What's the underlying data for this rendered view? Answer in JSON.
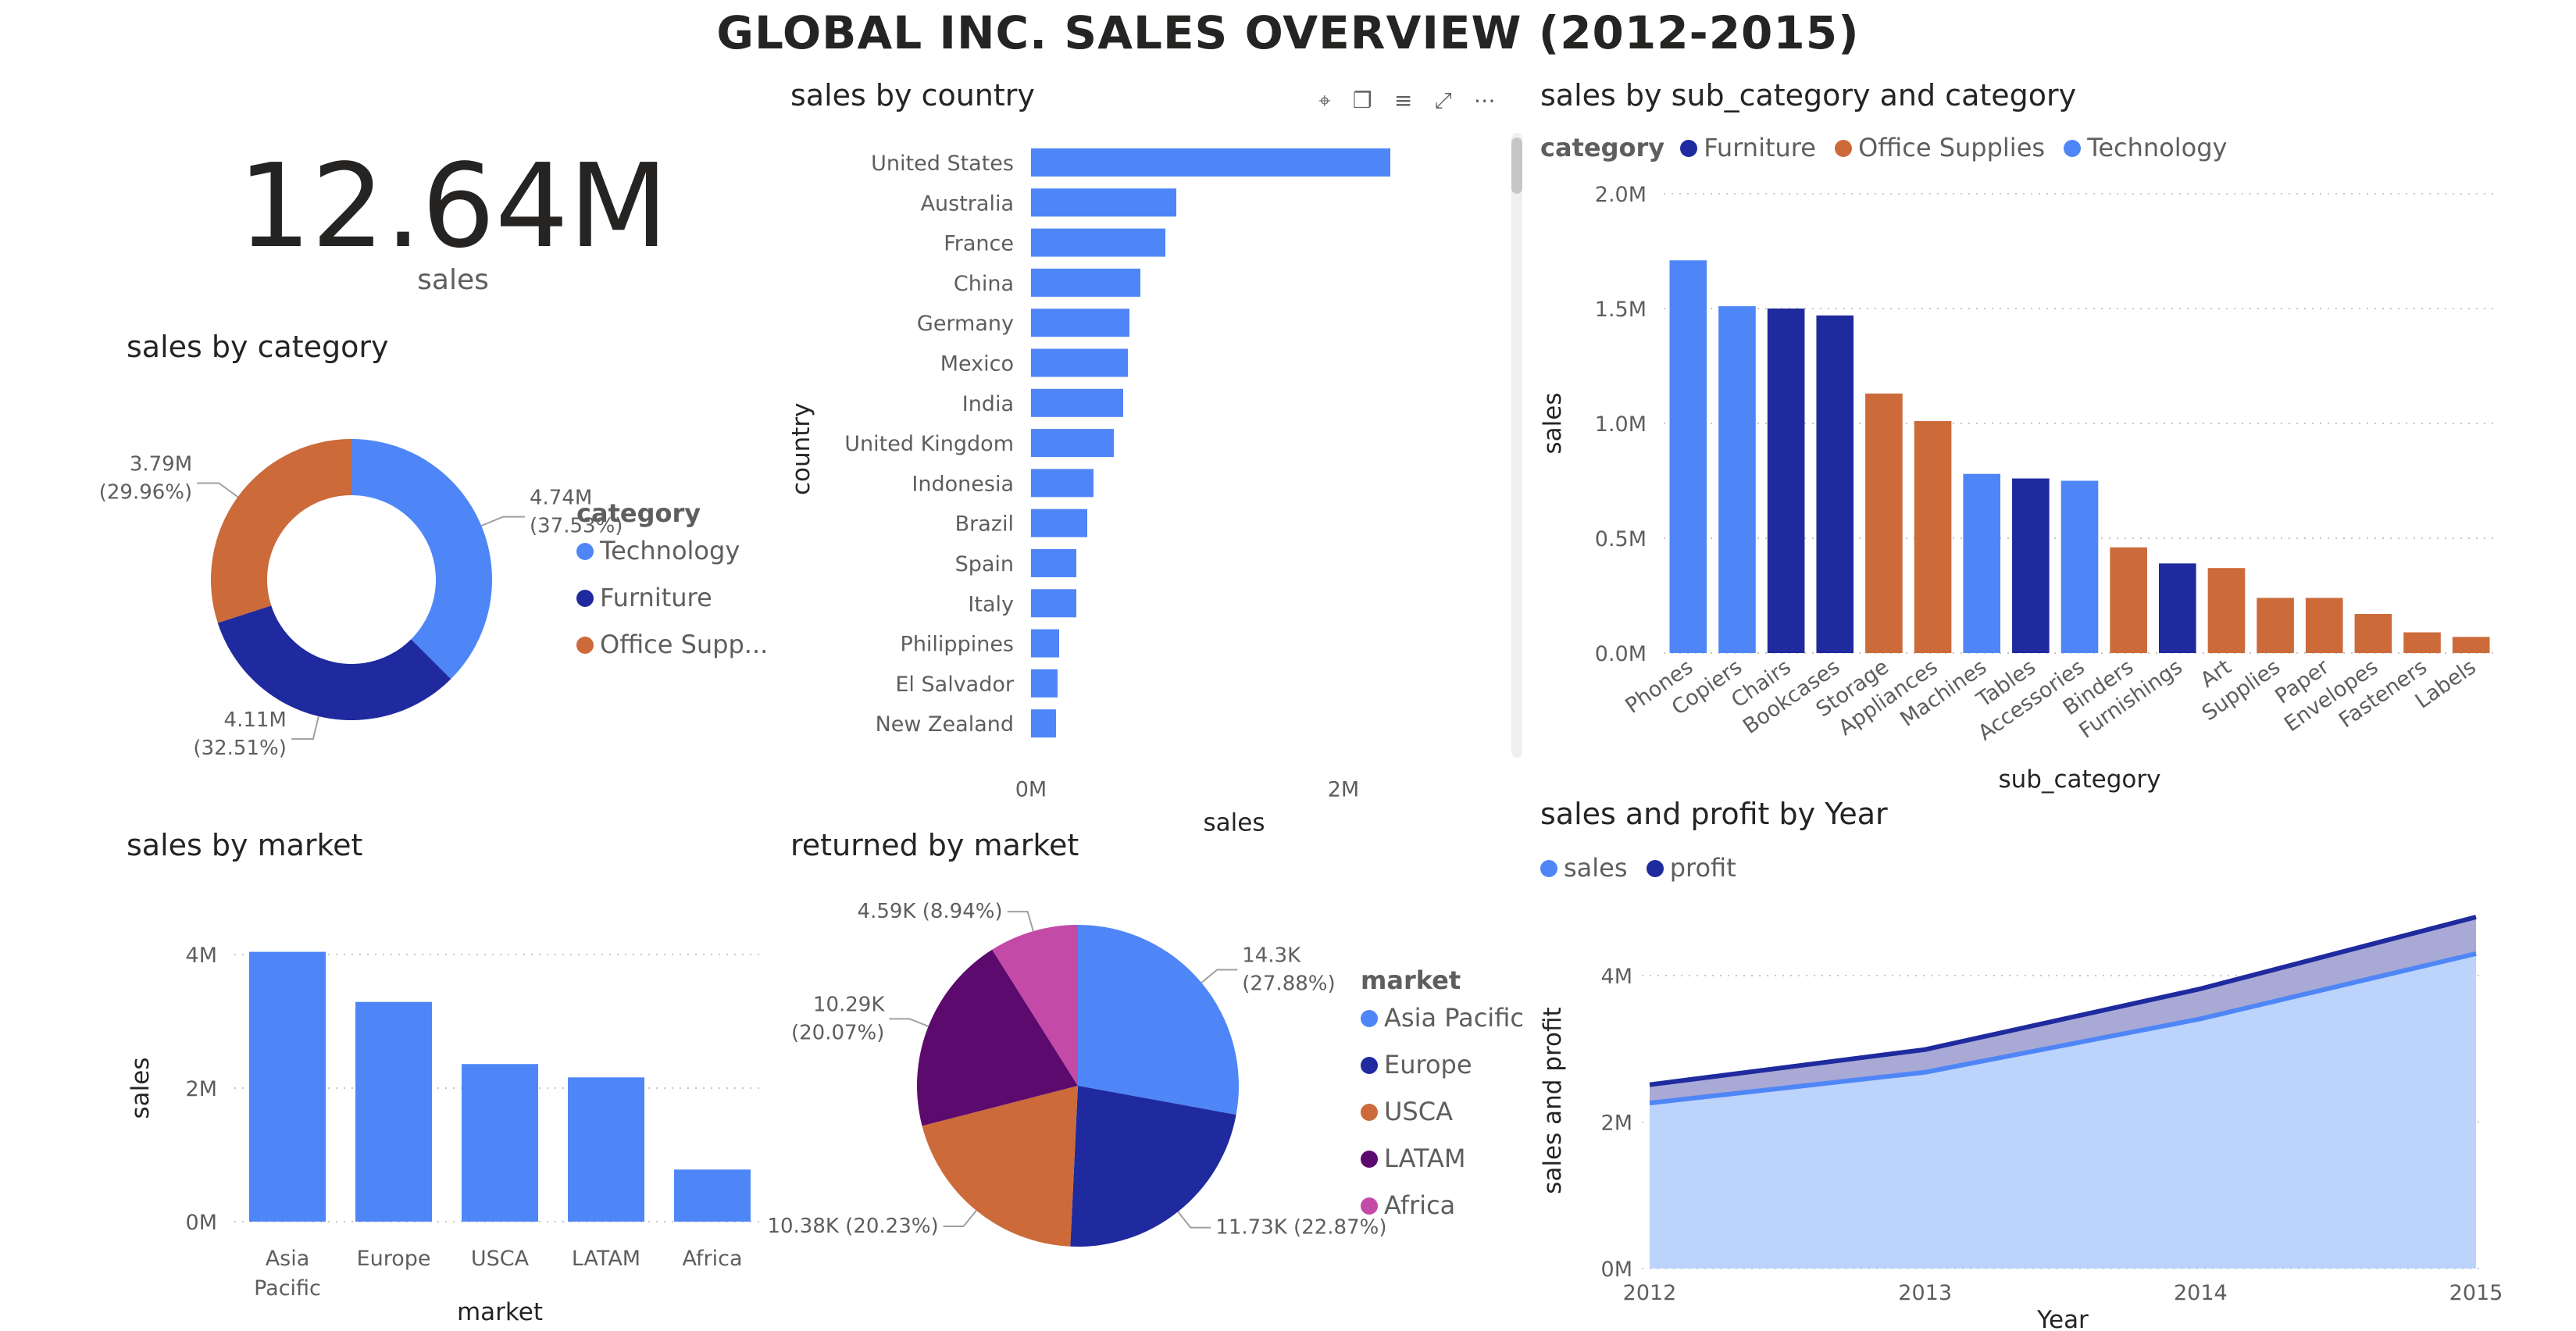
{
  "title": "GLOBAL INC. SALES OVERVIEW (2012-2015)",
  "kpi": {
    "value": "12.64M",
    "label": "sales"
  },
  "colors": {
    "technology": "#4f86f7",
    "furniture": "#1f2a9e",
    "office": "#cc6a3a",
    "latam": "#5c0a6e",
    "africa": "#c44aa8",
    "sales_area": "#bcd3fb",
    "profit_area": "#a9a9d6",
    "grid": "#c8c6c4"
  },
  "toolbar_icons": [
    "pin-icon",
    "copy-icon",
    "filter-icon",
    "focus-mode-icon",
    "more-options-icon"
  ],
  "category_donut": {
    "title": "sales by category",
    "legend_title": "category",
    "legend": [
      "Technology",
      "Furniture",
      "Office Supp..."
    ],
    "chart_data": {
      "type": "pie",
      "labels": [
        "Technology",
        "Furniture",
        "Office Supplies"
      ],
      "values": [
        4.74,
        4.11,
        3.79
      ],
      "percents": [
        37.53,
        32.51,
        29.96
      ],
      "data_labels": [
        [
          "4.74M",
          "(37.53%)"
        ],
        [
          "4.11M",
          "(32.51%)"
        ],
        [
          "3.79M",
          "(29.96%)"
        ]
      ],
      "colors": [
        "#4f86f7",
        "#1f2a9e",
        "#cc6a3a"
      ]
    }
  },
  "country_chart": {
    "title": "sales by country",
    "chart_data": {
      "type": "bar",
      "orientation": "horizontal",
      "categories": [
        "United States",
        "Australia",
        "France",
        "China",
        "Germany",
        "Mexico",
        "India",
        "United Kingdom",
        "Indonesia",
        "Brazil",
        "Spain",
        "Italy",
        "Philippines",
        "El Salvador",
        "New Zealand"
      ],
      "values": [
        2.3,
        0.93,
        0.86,
        0.7,
        0.63,
        0.62,
        0.59,
        0.53,
        0.4,
        0.36,
        0.29,
        0.29,
        0.18,
        0.17,
        0.16
      ],
      "xlabel": "sales",
      "ylabel": "country",
      "xticks": [
        "0M",
        "2M"
      ],
      "xlim": [
        0,
        2.6
      ],
      "unit": "M",
      "color": "#4f86f7"
    }
  },
  "subcat_chart": {
    "title": "sales by sub_category and category",
    "legend_title": "category",
    "legend": [
      "Furniture",
      "Office Supplies",
      "Technology"
    ],
    "chart_data": {
      "type": "bar",
      "categories": [
        "Phones",
        "Copiers",
        "Chairs",
        "Bookcases",
        "Storage",
        "Appliances",
        "Machines",
        "Tables",
        "Accessories",
        "Binders",
        "Furnishings",
        "Art",
        "Supplies",
        "Paper",
        "Envelopes",
        "Fasteners",
        "Labels"
      ],
      "values": [
        1.71,
        1.51,
        1.5,
        1.47,
        1.13,
        1.01,
        0.78,
        0.76,
        0.75,
        0.46,
        0.39,
        0.37,
        0.24,
        0.24,
        0.17,
        0.09,
        0.07
      ],
      "category_of": [
        "Technology",
        "Technology",
        "Furniture",
        "Furniture",
        "Office Supplies",
        "Office Supplies",
        "Technology",
        "Furniture",
        "Technology",
        "Office Supplies",
        "Furniture",
        "Office Supplies",
        "Office Supplies",
        "Office Supplies",
        "Office Supplies",
        "Office Supplies",
        "Office Supplies"
      ],
      "xlabel": "sub_category",
      "ylabel": "sales",
      "yticks": [
        "0.0M",
        "0.5M",
        "1.0M",
        "1.5M",
        "2.0M"
      ],
      "ylim": [
        0,
        2.0
      ],
      "grid": true
    }
  },
  "market_chart": {
    "title": "sales by market",
    "chart_data": {
      "type": "bar",
      "categories": [
        [
          "Asia",
          "Pacific"
        ],
        [
          "Europe"
        ],
        [
          "USCA"
        ],
        [
          "LATAM"
        ],
        [
          "Africa"
        ]
      ],
      "values": [
        4.04,
        3.29,
        2.36,
        2.16,
        0.78
      ],
      "xlabel": "market",
      "ylabel": "sales",
      "yticks": [
        "0M",
        "2M",
        "4M"
      ],
      "ylim": [
        0,
        4.0
      ],
      "grid": true,
      "color": "#4f86f7"
    }
  },
  "returned_pie": {
    "title": "returned by market",
    "legend_title": "market",
    "legend": [
      "Asia Pacific",
      "Europe",
      "USCA",
      "LATAM",
      "Africa"
    ],
    "chart_data": {
      "type": "pie",
      "labels": [
        "Asia Pacific",
        "Europe",
        "USCA",
        "LATAM",
        "Africa"
      ],
      "values": [
        14.3,
        11.73,
        10.38,
        10.29,
        4.59
      ],
      "percents": [
        27.88,
        22.87,
        20.23,
        20.07,
        8.94
      ],
      "data_labels": [
        [
          "14.3K",
          "(27.88%)"
        ],
        [
          "11.73K (22.87%)"
        ],
        [
          "10.38K (20.23%)"
        ],
        [
          "10.29K",
          "(20.07%)"
        ],
        [
          "4.59K (8.94%)"
        ]
      ],
      "colors": [
        "#4f86f7",
        "#1f2a9e",
        "#cc6a3a",
        "#5c0a6e",
        "#c44aa8"
      ]
    }
  },
  "year_chart": {
    "title": "sales and profit by Year",
    "legend": [
      "sales",
      "profit"
    ],
    "chart_data": {
      "type": "area",
      "x": [
        "2012",
        "2013",
        "2014",
        "2015"
      ],
      "series": [
        {
          "name": "sales",
          "values": [
            2.26,
            2.68,
            3.41,
            4.3
          ]
        },
        {
          "name": "profit",
          "values": [
            0.25,
            0.31,
            0.41,
            0.5
          ]
        }
      ],
      "stacked": true,
      "xlabel": "Year",
      "ylabel": "sales and profit",
      "yticks": [
        "0M",
        "2M",
        "4M"
      ],
      "ylim": [
        0,
        4.8
      ],
      "grid": true
    }
  }
}
